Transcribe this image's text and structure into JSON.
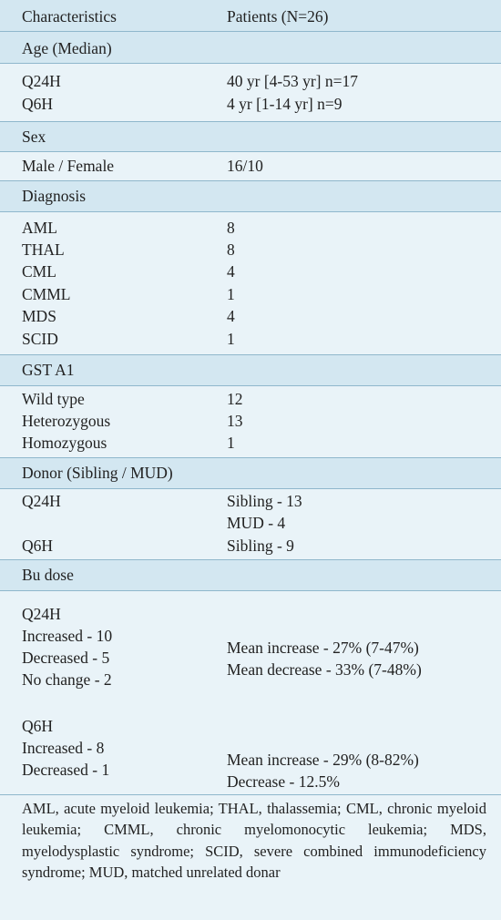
{
  "header": {
    "col1": "Characteristics",
    "col2": "Patients (N=26)"
  },
  "age": {
    "title": "Age (Median)",
    "rows": [
      {
        "label": "Q24H",
        "value": "40 yr [4-53 yr] n=17"
      },
      {
        "label": "Q6H",
        "value": "4 yr [1-14 yr] n=9"
      }
    ]
  },
  "sex": {
    "title": "Sex",
    "rows": [
      {
        "label": "Male / Female",
        "value": "16/10"
      }
    ]
  },
  "diagnosis": {
    "title": "Diagnosis",
    "rows": [
      {
        "label": "AML",
        "value": "8"
      },
      {
        "label": "THAL",
        "value": "8"
      },
      {
        "label": "CML",
        "value": "4"
      },
      {
        "label": "CMML",
        "value": "1"
      },
      {
        "label": "MDS",
        "value": "4"
      },
      {
        "label": "SCID",
        "value": "1"
      }
    ]
  },
  "gst": {
    "title": "GST A1",
    "rows": [
      {
        "label": "Wild type",
        "value": "12"
      },
      {
        "label": "Heterozygous",
        "value": "13"
      },
      {
        "label": "Homozygous",
        "value": "1"
      }
    ]
  },
  "donor": {
    "title": "Donor (Sibling / MUD)",
    "q24_label": "Q24H",
    "q24_values": [
      "Sibling - 13",
      "MUD - 4"
    ],
    "q6_label": "Q6H",
    "q6_values": [
      "Sibling - 9"
    ]
  },
  "bu": {
    "title": "Bu dose",
    "q24": {
      "label": "Q24H",
      "items": [
        "Increased - 10",
        "Decreased - 5",
        "No change - 2"
      ],
      "values": [
        "Mean increase - 27% (7-47%)",
        "Mean decrease - 33% (7-48%)"
      ]
    },
    "q6": {
      "label": "Q6H",
      "items": [
        "Increased - 8",
        "Decreased - 1"
      ],
      "values": [
        "Mean increase - 29% (8-82%)",
        "Decrease - 12.5%"
      ]
    }
  },
  "footnote": "AML, acute myeloid leukemia; THAL, thalassemia; CML, chronic myeloid leukemia; CMML, chronic myelomonocytic leukemia; MDS, myelodysplastic syndrome; SCID, severe combined immunodeficiency syndrome; MUD, matched unrelated donar"
}
